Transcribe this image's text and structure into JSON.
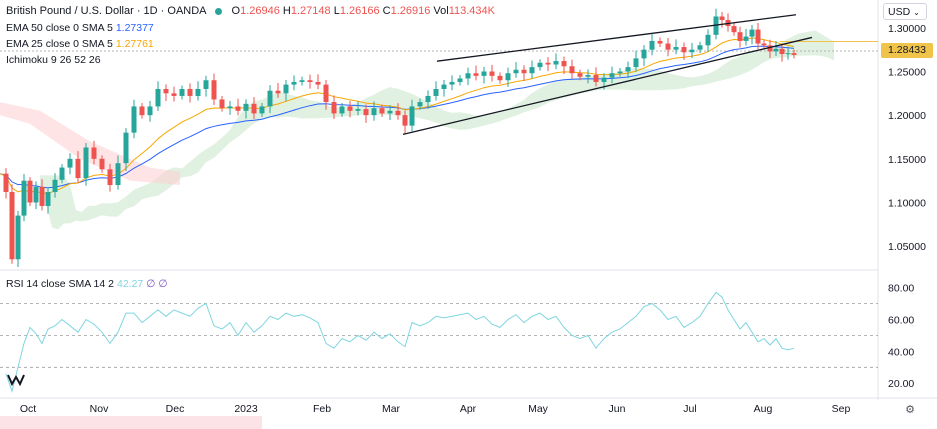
{
  "header": {
    "title": "British Pound / U.S. Dollar · 1D · OANDA",
    "open_label": "O",
    "open": "1.26946",
    "high_label": "H",
    "high": "1.27148",
    "low_label": "L",
    "low": "1.26166",
    "close_label": "C",
    "close": "1.26916",
    "volume_label": "Vol",
    "volume": "113.434K"
  },
  "indicators": {
    "ema50": {
      "label": "EMA 50 close 0 SMA 5",
      "value": "1.27377",
      "color": "#2962ff"
    },
    "ema25": {
      "label": "EMA 25 close 0 SMA 5",
      "value": "1.27761",
      "color": "#f7a600"
    },
    "ichimoku": {
      "label": "Ichimoku 9 26 52 26"
    },
    "rsi": {
      "label": "RSI 14 close SMA 14 2",
      "value": "42.27",
      "extra1": "∅",
      "extra2": "∅",
      "color": "#7fd5e0"
    }
  },
  "currency": "USD",
  "last_price": "1.28433",
  "colors": {
    "up": "#26a69a",
    "down": "#ef5350",
    "last_price_bg": "#f0c34a",
    "cloud_green": "#c8e6c9",
    "cloud_red": "#ffcdd2"
  },
  "chart_data": {
    "type": "candlestick",
    "symbol": "GBPUSD",
    "price_axis": {
      "ticks": [
        "1.30000",
        "1.25000",
        "1.20000",
        "1.15000",
        "1.10000",
        "1.05000"
      ],
      "ylim": [
        1.025,
        1.325
      ]
    },
    "rsi_axis": {
      "ticks": [
        "80.00",
        "60.00",
        "40.00",
        "20.00"
      ],
      "ylim": [
        12,
        86
      ],
      "levels": [
        70,
        50,
        30
      ]
    },
    "time_axis": [
      "Oct",
      "Nov",
      "Dec",
      "2023",
      "Feb",
      "Mar",
      "Apr",
      "May",
      "Jun",
      "Jul",
      "Aug",
      "Sep"
    ],
    "close_series": [
      [
        0,
        1.133
      ],
      [
        6,
        1.112
      ],
      [
        12,
        1.035
      ],
      [
        18,
        1.085
      ],
      [
        24,
        1.125
      ],
      [
        30,
        1.1
      ],
      [
        36,
        1.118
      ],
      [
        42,
        1.096
      ],
      [
        48,
        1.112
      ],
      [
        55,
        1.126
      ],
      [
        62,
        1.14
      ],
      [
        70,
        1.15
      ],
      [
        78,
        1.128
      ],
      [
        86,
        1.163
      ],
      [
        94,
        1.15
      ],
      [
        102,
        1.138
      ],
      [
        110,
        1.12
      ],
      [
        118,
        1.145
      ],
      [
        126,
        1.18
      ],
      [
        134,
        1.21
      ],
      [
        142,
        1.2
      ],
      [
        150,
        1.21
      ],
      [
        158,
        1.23
      ],
      [
        166,
        1.225
      ],
      [
        174,
        1.222
      ],
      [
        182,
        1.23
      ],
      [
        190,
        1.222
      ],
      [
        198,
        1.23
      ],
      [
        206,
        1.24
      ],
      [
        214,
        1.218
      ],
      [
        222,
        1.208
      ],
      [
        230,
        1.21
      ],
      [
        238,
        1.205
      ],
      [
        246,
        1.213
      ],
      [
        254,
        1.202
      ],
      [
        262,
        1.21
      ],
      [
        270,
        1.228
      ],
      [
        278,
        1.225
      ],
      [
        286,
        1.235
      ],
      [
        294,
        1.238
      ],
      [
        302,
        1.24
      ],
      [
        310,
        1.238
      ],
      [
        318,
        1.235
      ],
      [
        326,
        1.215
      ],
      [
        334,
        1.202
      ],
      [
        342,
        1.21
      ],
      [
        350,
        1.205
      ],
      [
        358,
        1.207
      ],
      [
        366,
        1.2
      ],
      [
        374,
        1.208
      ],
      [
        382,
        1.202
      ],
      [
        390,
        1.205
      ],
      [
        398,
        1.2
      ],
      [
        405,
        1.188
      ],
      [
        412,
        1.21
      ],
      [
        420,
        1.215
      ],
      [
        428,
        1.222
      ],
      [
        436,
        1.23
      ],
      [
        444,
        1.235
      ],
      [
        452,
        1.238
      ],
      [
        460,
        1.242
      ],
      [
        468,
        1.248
      ],
      [
        476,
        1.245
      ],
      [
        484,
        1.25
      ],
      [
        492,
        1.245
      ],
      [
        500,
        1.24
      ],
      [
        508,
        1.248
      ],
      [
        516,
        1.252
      ],
      [
        524,
        1.248
      ],
      [
        532,
        1.255
      ],
      [
        540,
        1.26
      ],
      [
        548,
        1.258
      ],
      [
        556,
        1.262
      ],
      [
        564,
        1.256
      ],
      [
        572,
        1.248
      ],
      [
        580,
        1.244
      ],
      [
        588,
        1.246
      ],
      [
        596,
        1.238
      ],
      [
        604,
        1.243
      ],
      [
        612,
        1.248
      ],
      [
        620,
        1.25
      ],
      [
        628,
        1.255
      ],
      [
        636,
        1.265
      ],
      [
        644,
        1.275
      ],
      [
        652,
        1.285
      ],
      [
        660,
        1.282
      ],
      [
        668,
        1.275
      ],
      [
        676,
        1.278
      ],
      [
        684,
        1.272
      ],
      [
        692,
        1.275
      ],
      [
        700,
        1.28
      ],
      [
        708,
        1.292
      ],
      [
        716,
        1.313
      ],
      [
        722,
        1.309
      ],
      [
        728,
        1.302
      ],
      [
        734,
        1.295
      ],
      [
        740,
        1.285
      ],
      [
        746,
        1.29
      ],
      [
        752,
        1.298
      ],
      [
        758,
        1.282
      ],
      [
        764,
        1.28
      ],
      [
        770,
        1.273
      ],
      [
        776,
        1.276
      ],
      [
        782,
        1.27
      ],
      [
        788,
        1.271
      ],
      [
        794,
        1.269
      ]
    ],
    "rsi_series": [
      [
        6,
        26
      ],
      [
        12,
        15
      ],
      [
        18,
        30
      ],
      [
        24,
        45
      ],
      [
        30,
        55
      ],
      [
        36,
        51
      ],
      [
        42,
        45
      ],
      [
        48,
        54
      ],
      [
        55,
        56
      ],
      [
        62,
        60
      ],
      [
        70,
        56
      ],
      [
        78,
        52
      ],
      [
        86,
        60
      ],
      [
        94,
        57
      ],
      [
        102,
        52
      ],
      [
        110,
        45
      ],
      [
        118,
        52
      ],
      [
        126,
        64
      ],
      [
        134,
        64
      ],
      [
        142,
        58
      ],
      [
        150,
        62
      ],
      [
        158,
        66
      ],
      [
        166,
        62
      ],
      [
        174,
        66
      ],
      [
        182,
        64
      ],
      [
        190,
        62
      ],
      [
        198,
        67
      ],
      [
        206,
        70
      ],
      [
        214,
        56
      ],
      [
        222,
        54
      ],
      [
        230,
        58
      ],
      [
        238,
        50
      ],
      [
        246,
        58
      ],
      [
        254,
        52
      ],
      [
        262,
        56
      ],
      [
        270,
        62
      ],
      [
        278,
        60
      ],
      [
        286,
        64
      ],
      [
        294,
        62
      ],
      [
        302,
        63
      ],
      [
        310,
        61
      ],
      [
        318,
        58
      ],
      [
        326,
        45
      ],
      [
        334,
        42
      ],
      [
        342,
        48
      ],
      [
        350,
        46
      ],
      [
        358,
        50
      ],
      [
        366,
        47
      ],
      [
        374,
        52
      ],
      [
        382,
        48
      ],
      [
        390,
        51
      ],
      [
        398,
        46
      ],
      [
        405,
        43
      ],
      [
        412,
        58
      ],
      [
        420,
        56
      ],
      [
        428,
        58
      ],
      [
        436,
        62
      ],
      [
        444,
        61
      ],
      [
        452,
        62
      ],
      [
        460,
        63
      ],
      [
        468,
        64
      ],
      [
        476,
        60
      ],
      [
        484,
        62
      ],
      [
        492,
        57
      ],
      [
        500,
        55
      ],
      [
        508,
        60
      ],
      [
        516,
        63
      ],
      [
        524,
        58
      ],
      [
        532,
        62
      ],
      [
        540,
        64
      ],
      [
        548,
        60
      ],
      [
        556,
        62
      ],
      [
        564,
        55
      ],
      [
        572,
        50
      ],
      [
        580,
        48
      ],
      [
        588,
        50
      ],
      [
        596,
        42
      ],
      [
        604,
        48
      ],
      [
        612,
        52
      ],
      [
        620,
        54
      ],
      [
        628,
        58
      ],
      [
        636,
        62
      ],
      [
        644,
        68
      ],
      [
        652,
        70
      ],
      [
        660,
        66
      ],
      [
        668,
        60
      ],
      [
        676,
        62
      ],
      [
        684,
        55
      ],
      [
        692,
        58
      ],
      [
        700,
        62
      ],
      [
        708,
        70
      ],
      [
        716,
        77
      ],
      [
        722,
        74
      ],
      [
        728,
        66
      ],
      [
        734,
        60
      ],
      [
        740,
        54
      ],
      [
        746,
        58
      ],
      [
        752,
        52
      ],
      [
        758,
        46
      ],
      [
        764,
        48
      ],
      [
        770,
        44
      ],
      [
        776,
        48
      ],
      [
        782,
        42
      ],
      [
        788,
        41
      ],
      [
        794,
        42
      ]
    ]
  }
}
